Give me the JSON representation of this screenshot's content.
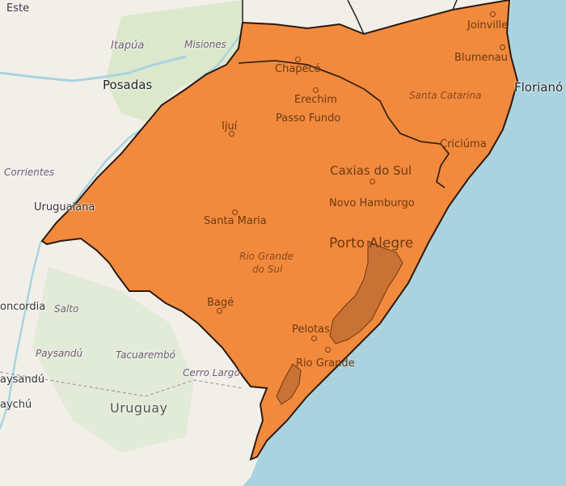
{
  "map": {
    "alert_color": "#f28a3e",
    "alert_border": "#2b1a0e",
    "sea_color": "#aad3df",
    "land_color": "#f2efe9",
    "lagoon_color": "#c97236"
  },
  "cities": {
    "joinville": "Joinville",
    "blumenau": "Blumenau",
    "florianopolis": "Florianó",
    "chapeco": "Chapecó",
    "erechim": "Erechim",
    "passo_fundo": "Passo Fundo",
    "ijui": "Ijuí",
    "criciuma": "Criciúma",
    "caxias": "Caxias do Sul",
    "novo_hamburgo": "Novo Hamburgo",
    "santa_maria": "Santa Maria",
    "porto_alegre": "Porto Alegre",
    "uruguaiana": "Uruguaiana",
    "bage": "Bagé",
    "pelotas": "Pelotas",
    "rio_grande": "Rio Grande",
    "posadas": "Posadas",
    "itapua": "Itapúa",
    "concordia": "oncordia",
    "paysandu_region": "Paysandú",
    "paysandu_city": "aysandú",
    "gualeguaychu": "aychú",
    "este": "Este"
  },
  "regions": {
    "misiones": "Misiones",
    "corrientes": "Corrientes",
    "salto": "Salto",
    "tacuarembo": "Tacuarembó",
    "cerro_largo": "Cerro Largo",
    "santa_catarina": "Santa Catarina",
    "rio_grande_do_sul_1": "Rio Grande",
    "rio_grande_do_sul_2": "do Sul"
  },
  "countries": {
    "uruguay": "Uruguay"
  }
}
